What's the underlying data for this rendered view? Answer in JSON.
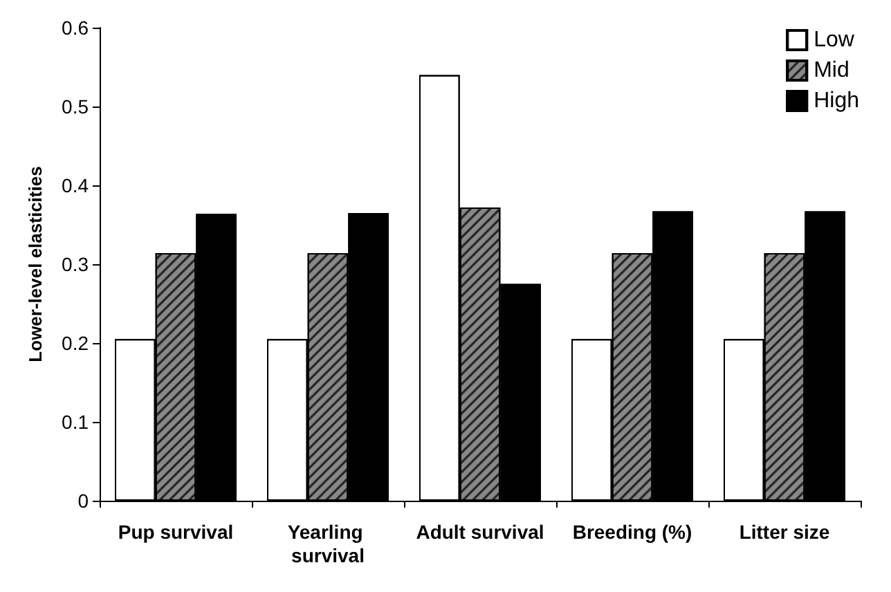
{
  "chart_data": {
    "type": "bar",
    "ylabel": "Lower-level elasticities",
    "categories": [
      "Pup survival",
      "Yearling survival",
      "Adult survival",
      "Breeding (%)",
      "Litter size"
    ],
    "series": [
      {
        "name": "Low",
        "color": "#ffffff",
        "values": [
          0.205,
          0.205,
          0.54,
          0.205,
          0.205
        ]
      },
      {
        "name": "Mid",
        "color": "#888888",
        "values": [
          0.314,
          0.314,
          0.372,
          0.314,
          0.314
        ]
      },
      {
        "name": "High",
        "color": "#000000",
        "values": [
          0.364,
          0.365,
          0.275,
          0.367,
          0.367
        ]
      }
    ],
    "ylim": [
      0,
      0.6
    ],
    "yticks": [
      0,
      0.1,
      0.2,
      0.3,
      0.4,
      0.5,
      0.6
    ],
    "grid": false,
    "legend": "top right"
  }
}
